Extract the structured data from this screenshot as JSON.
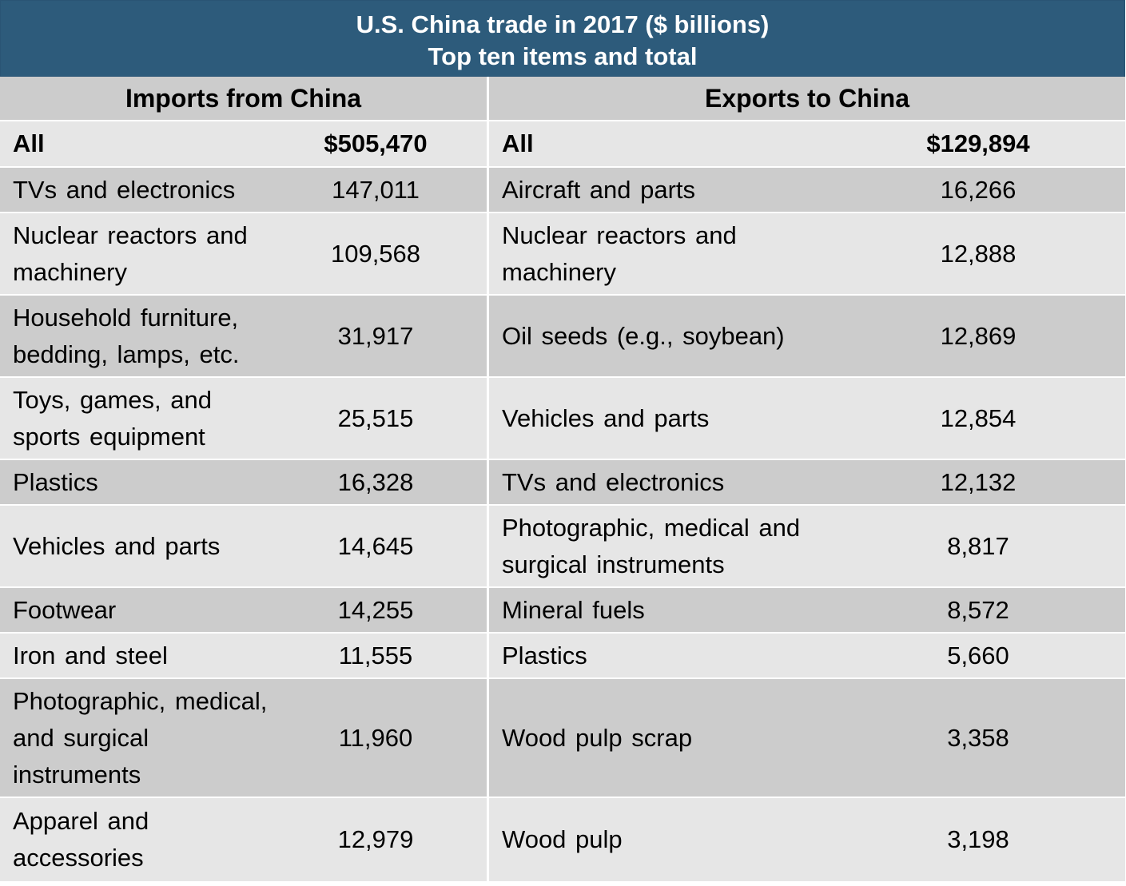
{
  "chart_data": {
    "type": "table",
    "title": "U.S. China trade in 2017 ($ billions)",
    "subtitle": "Top ten items and total",
    "columns": [
      "Imports from China",
      "Exports to China"
    ],
    "rows": [
      {
        "import_item": "All",
        "import_value": "$505,470",
        "export_item": "All",
        "export_value": "$129,894"
      },
      {
        "import_item": "TVs and electronics",
        "import_value": "147,011",
        "export_item": "Aircraft and parts",
        "export_value": "16,266"
      },
      {
        "import_item": "Nuclear reactors and machinery",
        "import_value": "109,568",
        "export_item": "Nuclear reactors and machinery",
        "export_value": "12,888"
      },
      {
        "import_item": "Household furniture, bedding, lamps, etc.",
        "import_value": "31,917",
        "export_item": "Oil seeds (e.g., soybean)",
        "export_value": "12,869"
      },
      {
        "import_item": "Toys, games, and sports equipment",
        "import_value": "25,515",
        "export_item": "Vehicles and parts",
        "export_value": "12,854"
      },
      {
        "import_item": "Plastics",
        "import_value": "16,328",
        "export_item": "TVs and electronics",
        "export_value": "12,132"
      },
      {
        "import_item": "Vehicles and parts",
        "import_value": "14,645",
        "export_item": "Photographic, medical and surgical instruments",
        "export_value": "8,817"
      },
      {
        "import_item": "Footwear",
        "import_value": "14,255",
        "export_item": "Mineral fuels",
        "export_value": "8,572"
      },
      {
        "import_item": "Iron and steel",
        "import_value": "11,555",
        "export_item": "Plastics",
        "export_value": "5,660"
      },
      {
        "import_item": "Photographic, medical, and surgical instruments",
        "import_value": "11,960",
        "export_item": "Wood pulp scrap",
        "export_value": "3,358"
      },
      {
        "import_item": "Apparel and accessories",
        "import_value": "12,979",
        "export_item": "Wood pulp",
        "export_value": "3,198"
      }
    ]
  },
  "colors": {
    "title_bg": "#2d5b7b",
    "title_text": "#ffffff",
    "shade_dark": "#cccccc",
    "shade_light": "#e6e6e6"
  }
}
